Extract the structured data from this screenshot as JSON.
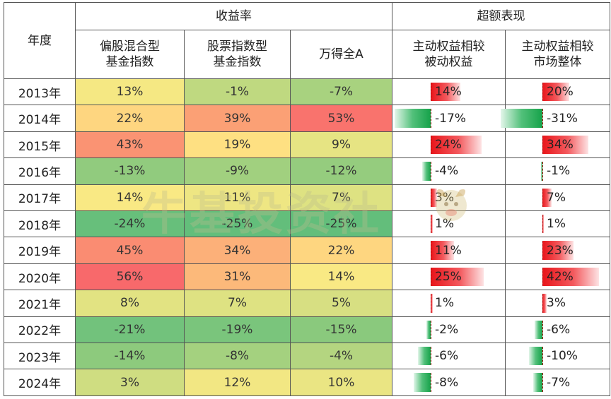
{
  "header": {
    "year_col": "年度",
    "group_returns": "收益率",
    "group_excess": "超额表现",
    "col_hybrid": [
      "偏股混合型",
      "基金指数"
    ],
    "col_stock": [
      "股票指数型",
      "基金指数"
    ],
    "col_wind": "万得全A",
    "col_vs_passive": [
      "主动权益相较",
      "被动权益"
    ],
    "col_vs_market": [
      "主动权益相较",
      "市场整体"
    ]
  },
  "watermark": "牛基投资社",
  "colors": {
    "heat_green": "#63be7b",
    "heat_yellow": "#ffeb84",
    "heat_red": "#f8696b",
    "bar_positive": "#e8151a",
    "bar_negative": "#16a24a"
  },
  "chart_data": {
    "type": "table",
    "columns": [
      "偏股混合型基金指数",
      "股票指数型基金指数",
      "万得全A",
      "主动权益相较被动权益",
      "主动权益相较市场整体"
    ],
    "unit": "%",
    "rows": [
      {
        "year": "2013年",
        "hybrid": 13,
        "stock": -1,
        "wind": -7,
        "vs_passive": 14,
        "vs_market": 20
      },
      {
        "year": "2014年",
        "hybrid": 22,
        "stock": 39,
        "wind": 53,
        "vs_passive": -17,
        "vs_market": -31
      },
      {
        "year": "2015年",
        "hybrid": 43,
        "stock": 19,
        "wind": 9,
        "vs_passive": 24,
        "vs_market": 34
      },
      {
        "year": "2016年",
        "hybrid": -13,
        "stock": -9,
        "wind": -12,
        "vs_passive": -4,
        "vs_market": -1
      },
      {
        "year": "2017年",
        "hybrid": 14,
        "stock": 11,
        "wind": 7,
        "vs_passive": 3,
        "vs_market": 7
      },
      {
        "year": "2018年",
        "hybrid": -24,
        "stock": -25,
        "wind": -25,
        "vs_passive": 1,
        "vs_market": 1
      },
      {
        "year": "2019年",
        "hybrid": 45,
        "stock": 34,
        "wind": 22,
        "vs_passive": 11,
        "vs_market": 23
      },
      {
        "year": "2020年",
        "hybrid": 56,
        "stock": 31,
        "wind": 14,
        "vs_passive": 25,
        "vs_market": 42
      },
      {
        "year": "2021年",
        "hybrid": 8,
        "stock": 7,
        "wind": 5,
        "vs_passive": 1,
        "vs_market": 3
      },
      {
        "year": "2022年",
        "hybrid": -21,
        "stock": -19,
        "wind": -15,
        "vs_passive": -2,
        "vs_market": -6
      },
      {
        "year": "2023年",
        "hybrid": -14,
        "stock": -8,
        "wind": -4,
        "vs_passive": -6,
        "vs_market": -10
      },
      {
        "year": "2024年",
        "hybrid": 3,
        "stock": 12,
        "wind": 10,
        "vs_passive": -8,
        "vs_market": -7
      }
    ]
  }
}
